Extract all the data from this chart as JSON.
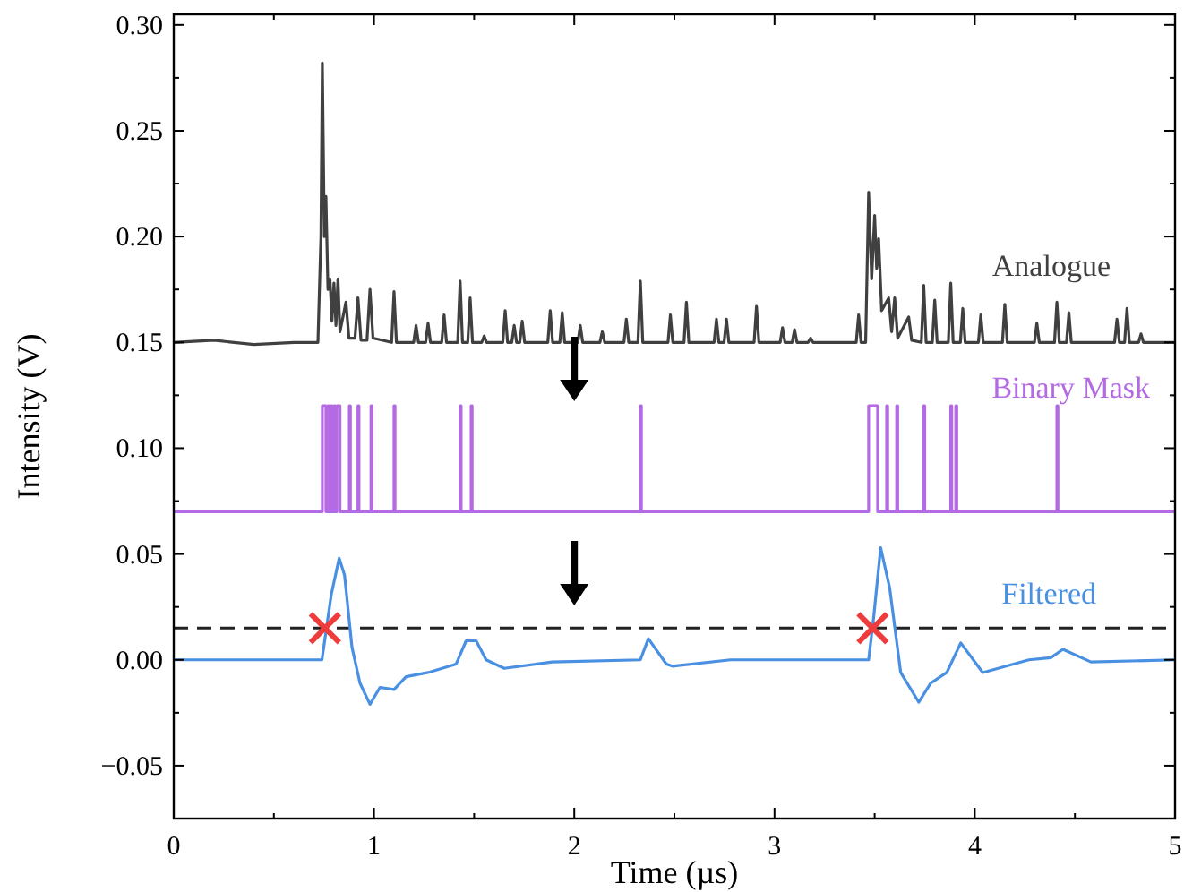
{
  "chart_data": {
    "type": "line",
    "xlabel": "Time (µs)",
    "ylabel": "Intensity (V)",
    "xlim": [
      0,
      5
    ],
    "ylim": [
      -0.075,
      0.305
    ],
    "xticks": [
      0,
      {
        "value": 0.5,
        "label": null
      },
      1,
      {
        "value": 1.5,
        "label": null
      },
      2,
      {
        "value": 2.5,
        "label": null
      },
      3,
      {
        "value": 3.5,
        "label": null
      },
      4,
      {
        "value": 4.5,
        "label": null
      },
      5
    ],
    "yticks": [
      {
        "value": -0.05,
        "label": "−0.05"
      },
      {
        "value": -0.025,
        "label": null
      },
      {
        "value": 0,
        "label": "0.00"
      },
      {
        "value": 0.025,
        "label": null
      },
      {
        "value": 0.05,
        "label": "0.05"
      },
      {
        "value": 0.075,
        "label": null
      },
      {
        "value": 0.1,
        "label": "0.10"
      },
      {
        "value": 0.125,
        "label": null
      },
      {
        "value": 0.15,
        "label": "0.15"
      },
      {
        "value": 0.175,
        "label": null
      },
      {
        "value": 0.2,
        "label": "0.20"
      },
      {
        "value": 0.225,
        "label": null
      },
      {
        "value": 0.25,
        "label": "0.25"
      },
      {
        "value": 0.275,
        "label": null
      },
      {
        "value": 0.3,
        "label": "0.30"
      }
    ],
    "grid": false,
    "legend": false,
    "series": [
      {
        "name": "Analogue",
        "color": "#404040",
        "line_style": "solid",
        "x": [
          0,
          0.2,
          0.4,
          0.6,
          0.72,
          0.735,
          0.742,
          0.752,
          0.76,
          0.77,
          0.78,
          0.79,
          0.8,
          0.81,
          0.82,
          0.83,
          0.86,
          0.875,
          0.905,
          0.92,
          0.935,
          0.965,
          0.98,
          0.995,
          1.088,
          1.1,
          1.112,
          1.198,
          1.21,
          1.222,
          1.258,
          1.27,
          1.282,
          1.338,
          1.35,
          1.362,
          1.418,
          1.43,
          1.442,
          1.468,
          1.48,
          1.492,
          1.538,
          1.55,
          1.562,
          1.643,
          1.655,
          1.667,
          1.688,
          1.7,
          1.712,
          1.728,
          1.74,
          1.752,
          1.868,
          1.88,
          1.892,
          1.928,
          1.94,
          1.952,
          2.018,
          2.03,
          2.042,
          2.128,
          2.14,
          2.152,
          2.248,
          2.26,
          2.272,
          2.318,
          2.33,
          2.342,
          2.468,
          2.48,
          2.492,
          2.548,
          2.56,
          2.572,
          2.698,
          2.71,
          2.722,
          2.748,
          2.76,
          2.772,
          2.898,
          2.91,
          2.922,
          3.028,
          3.04,
          3.052,
          3.088,
          3.1,
          3.112,
          3.168,
          3.18,
          3.192,
          3.408,
          3.42,
          3.432,
          3.455,
          3.47,
          3.485,
          3.5,
          3.51,
          3.52,
          3.535,
          3.57,
          3.585,
          3.6,
          3.615,
          3.67,
          3.685,
          3.733,
          3.745,
          3.757,
          3.788,
          3.8,
          3.812,
          3.868,
          3.88,
          3.892,
          3.928,
          3.94,
          3.952,
          4.018,
          4.03,
          4.042,
          4.138,
          4.15,
          4.162,
          4.298,
          4.31,
          4.322,
          4.398,
          4.41,
          4.422,
          4.458,
          4.47,
          4.482,
          4.698,
          4.71,
          4.722,
          4.748,
          4.76,
          4.772,
          4.818,
          4.83,
          4.842,
          5
        ],
        "values": [
          0.15,
          0.151,
          0.149,
          0.15,
          0.15,
          0.2,
          0.282,
          0.2,
          0.219,
          0.175,
          0.18,
          0.16,
          0.178,
          0.158,
          0.18,
          0.155,
          0.169,
          0.152,
          0.152,
          0.171,
          0.151,
          0.151,
          0.175,
          0.152,
          0.15,
          0.174,
          0.15,
          0.15,
          0.158,
          0.15,
          0.15,
          0.159,
          0.15,
          0.15,
          0.163,
          0.15,
          0.15,
          0.179,
          0.15,
          0.15,
          0.171,
          0.15,
          0.15,
          0.153,
          0.15,
          0.15,
          0.165,
          0.15,
          0.15,
          0.158,
          0.15,
          0.15,
          0.16,
          0.15,
          0.15,
          0.165,
          0.15,
          0.15,
          0.164,
          0.15,
          0.15,
          0.158,
          0.15,
          0.15,
          0.155,
          0.15,
          0.15,
          0.161,
          0.15,
          0.15,
          0.179,
          0.15,
          0.15,
          0.163,
          0.15,
          0.15,
          0.169,
          0.15,
          0.15,
          0.161,
          0.15,
          0.15,
          0.161,
          0.15,
          0.15,
          0.167,
          0.15,
          0.15,
          0.157,
          0.15,
          0.15,
          0.156,
          0.15,
          0.15,
          0.152,
          0.15,
          0.15,
          0.163,
          0.15,
          0.15,
          0.221,
          0.18,
          0.21,
          0.185,
          0.199,
          0.165,
          0.171,
          0.155,
          0.171,
          0.152,
          0.162,
          0.151,
          0.15,
          0.177,
          0.15,
          0.15,
          0.17,
          0.15,
          0.15,
          0.178,
          0.15,
          0.15,
          0.166,
          0.15,
          0.15,
          0.163,
          0.15,
          0.15,
          0.168,
          0.15,
          0.15,
          0.159,
          0.15,
          0.15,
          0.169,
          0.15,
          0.15,
          0.164,
          0.15,
          0.15,
          0.161,
          0.15,
          0.15,
          0.166,
          0.15,
          0.15,
          0.154,
          0.15,
          0.15
        ]
      },
      {
        "name": "Binary Mask",
        "color": "#b36ae2",
        "line_style": "solid",
        "x": [
          0,
          0.742,
          0.742,
          0.76,
          0.76,
          0.77,
          0.77,
          0.775,
          0.775,
          0.785,
          0.785,
          0.79,
          0.79,
          0.8,
          0.8,
          0.805,
          0.805,
          0.815,
          0.815,
          0.83,
          0.83,
          0.877,
          0.877,
          0.882,
          0.882,
          0.92,
          0.92,
          0.925,
          0.925,
          0.985,
          0.985,
          0.99,
          0.99,
          1.1,
          1.1,
          1.105,
          1.105,
          1.43,
          1.43,
          1.435,
          1.435,
          1.485,
          1.485,
          1.49,
          1.49,
          2.33,
          2.33,
          2.335,
          2.335,
          3.47,
          3.47,
          3.515,
          3.515,
          3.56,
          3.56,
          3.565,
          3.565,
          3.61,
          3.61,
          3.615,
          3.615,
          3.745,
          3.745,
          3.75,
          3.75,
          3.88,
          3.88,
          3.885,
          3.885,
          3.905,
          3.905,
          3.91,
          3.91,
          4.41,
          4.41,
          4.415,
          4.415,
          5
        ],
        "values": [
          0.07,
          0.07,
          0.12,
          0.12,
          0.07,
          0.07,
          0.12,
          0.12,
          0.07,
          0.07,
          0.12,
          0.12,
          0.07,
          0.07,
          0.12,
          0.12,
          0.07,
          0.07,
          0.12,
          0.12,
          0.07,
          0.07,
          0.12,
          0.12,
          0.07,
          0.07,
          0.12,
          0.12,
          0.07,
          0.07,
          0.12,
          0.12,
          0.07,
          0.07,
          0.12,
          0.12,
          0.07,
          0.07,
          0.12,
          0.12,
          0.07,
          0.07,
          0.12,
          0.12,
          0.07,
          0.07,
          0.12,
          0.12,
          0.07,
          0.07,
          0.12,
          0.12,
          0.07,
          0.07,
          0.12,
          0.12,
          0.07,
          0.07,
          0.12,
          0.12,
          0.07,
          0.07,
          0.12,
          0.12,
          0.07,
          0.07,
          0.12,
          0.12,
          0.07,
          0.07,
          0.12,
          0.12,
          0.07,
          0.07,
          0.12,
          0.12,
          0.07,
          0.07
        ]
      },
      {
        "name": "Filtered",
        "color": "#4a90e2",
        "line_style": "solid",
        "x": [
          0,
          0.74,
          0.787,
          0.826,
          0.853,
          0.89,
          0.93,
          0.98,
          1.03,
          1.1,
          1.16,
          1.27,
          1.41,
          1.46,
          1.51,
          1.56,
          1.65,
          1.89,
          2.33,
          2.37,
          2.46,
          2.49,
          2.78,
          3.47,
          3.495,
          3.53,
          3.575,
          3.63,
          3.72,
          3.78,
          3.86,
          3.93,
          4.04,
          4.27,
          4.38,
          4.44,
          4.58,
          5
        ],
        "values": [
          0,
          0,
          0.031,
          0.048,
          0.04,
          0.006,
          -0.011,
          -0.021,
          -0.013,
          -0.014,
          -0.008,
          -0.006,
          -0.002,
          0.009,
          0.009,
          0,
          -0.004,
          -0.001,
          0,
          0.01,
          -0.002,
          -0.003,
          0,
          0,
          0.02,
          0.053,
          0.034,
          -0.006,
          -0.02,
          -0.011,
          -0.006,
          0.008,
          -0.006,
          0,
          0.001,
          0.005,
          -0.001,
          0
        ]
      },
      {
        "type": "scatter",
        "color": "#ee3b3b",
        "marker": "cross",
        "x": [
          0.755,
          3.49
        ],
        "values": [
          0.015,
          0.015
        ]
      }
    ],
    "ref_lines": [
      {
        "axis": "y",
        "value": 0.015,
        "color": "#222222",
        "line_style": "dashed"
      }
    ]
  }
}
